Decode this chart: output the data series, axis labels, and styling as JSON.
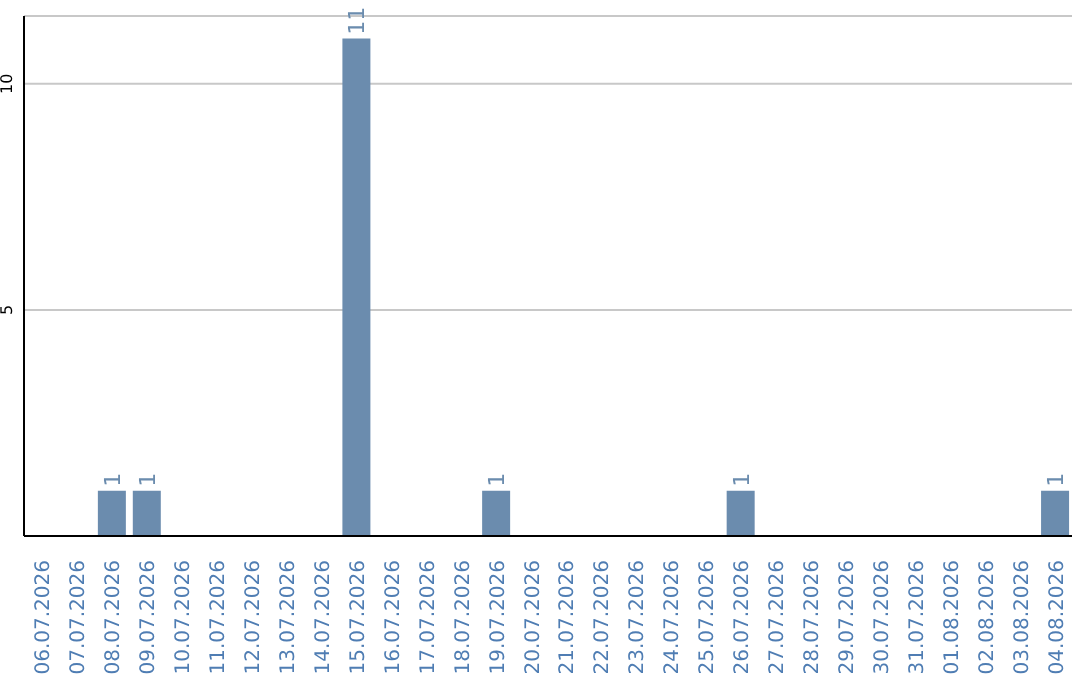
{
  "chart_data": {
    "type": "bar",
    "categories": [
      "06.07.2026",
      "07.07.2026",
      "08.07.2026",
      "09.07.2026",
      "10.07.2026",
      "11.07.2026",
      "12.07.2026",
      "13.07.2026",
      "14.07.2026",
      "15.07.2026",
      "16.07.2026",
      "17.07.2026",
      "18.07.2026",
      "19.07.2026",
      "20.07.2026",
      "21.07.2026",
      "22.07.2026",
      "23.07.2026",
      "24.07.2026",
      "25.07.2026",
      "26.07.2026",
      "27.07.2026",
      "28.07.2026",
      "29.07.2026",
      "30.07.2026",
      "31.07.2026",
      "01.08.2026",
      "02.08.2026",
      "03.08.2026",
      "04.08.2026"
    ],
    "values": [
      0,
      0,
      1,
      1,
      0,
      0,
      0,
      0,
      0,
      11,
      0,
      0,
      0,
      1,
      0,
      0,
      0,
      0,
      0,
      0,
      1,
      0,
      0,
      0,
      0,
      0,
      0,
      0,
      0,
      1
    ],
    "value_labels": [
      null,
      null,
      "1",
      "1",
      null,
      null,
      null,
      null,
      null,
      "11",
      null,
      null,
      null,
      "1",
      null,
      null,
      null,
      null,
      null,
      null,
      "1",
      null,
      null,
      null,
      null,
      null,
      null,
      null,
      null,
      "1"
    ],
    "color": "#6b8cae",
    "ylim": [
      0,
      11.5
    ],
    "yticks": [
      5,
      10
    ],
    "grid": "y"
  }
}
